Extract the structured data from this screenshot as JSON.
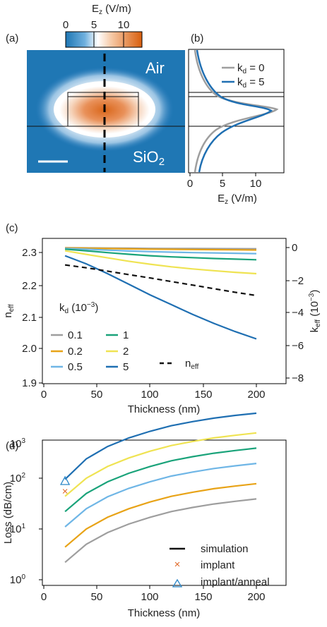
{
  "colors": {
    "field_low": "#1f77b4",
    "field_mid": "#ffffff",
    "field_high": "#d95f0e",
    "kd_0p1": "#9e9e9e",
    "kd_0p2": "#e8a317",
    "kd_0p5": "#6fb6e6",
    "kd_1": "#1aa37a",
    "kd_2": "#efe352",
    "kd_5": "#1f6fb2",
    "neff_line": "#111111",
    "implant_marker": "#e06a2a",
    "anneal_marker": "#2a86c8"
  },
  "panel_a": {
    "label": "(a)",
    "colorbar_title": "E",
    "colorbar_sub": "z",
    "colorbar_unit": " (V/m)",
    "colorbar_ticks": [
      "0",
      "5",
      "10"
    ],
    "air_label": "Air",
    "substrate_label": "SiO",
    "substrate_sub": "2"
  },
  "panel_b": {
    "label": "(b)",
    "xlabel_main": "E",
    "xlabel_sub": "z",
    "xlabel_unit": " (V/m)",
    "xticks": [
      "0",
      "5",
      "10"
    ],
    "legend": [
      {
        "k": "k",
        "sub": "d",
        "val": " = 0"
      },
      {
        "k": "k",
        "sub": "d",
        "val": " = 5"
      }
    ]
  },
  "panel_c": {
    "label": "(c)",
    "xlabel": "Thickness (nm)",
    "ylabel_left_main": "n",
    "ylabel_left_sub": "eff",
    "ylabel_right_main": "k",
    "ylabel_right_sub": "eff",
    "ylabel_right_unit": " (10",
    "ylabel_right_exp": "−3",
    "ylabel_right_close": ")",
    "legend_title_main": "k",
    "legend_title_sub": "d",
    "legend_title_unit": " (10",
    "legend_title_exp": "−3",
    "legend_title_close": ")",
    "legend_items": [
      "0.1",
      "1",
      "0.2",
      "2",
      "0.5",
      "5"
    ],
    "neff_legend_main": "n",
    "neff_legend_sub": "eff",
    "yticks_left": [
      "1.9",
      "2.0",
      "2.1",
      "2.2",
      "2.3"
    ],
    "yticks_right": [
      "0",
      "−2",
      "−4",
      "−6",
      "−8"
    ],
    "xticks": [
      "0",
      "50",
      "100",
      "150",
      "200"
    ]
  },
  "panel_d": {
    "label": "(d)",
    "xlabel": "Thickness (nm)",
    "ylabel": "Loss (dB/cm)",
    "xticks": [
      "0",
      "50",
      "100",
      "150",
      "200"
    ],
    "yticks": [
      {
        "base": "10",
        "exp": "0"
      },
      {
        "base": "10",
        "exp": "1"
      },
      {
        "base": "10",
        "exp": "2"
      },
      {
        "base": "10",
        "exp": "3"
      }
    ],
    "legend": [
      "simulation",
      "implant",
      "implant/anneal"
    ]
  },
  "chart_data": [
    {
      "type": "heatmap",
      "panel": "a",
      "title": "E_z (V/m)",
      "colorbar_range": [
        0,
        12
      ],
      "labels": [
        "Air",
        "SiO2"
      ]
    },
    {
      "type": "line",
      "panel": "b",
      "xlabel": "E_z (V/m)",
      "xlim": [
        0,
        14
      ],
      "series": [
        {
          "name": "k_d = 0",
          "peak_value": 12.6
        },
        {
          "name": "k_d = 5",
          "peak_value": 12.1
        }
      ]
    },
    {
      "type": "line",
      "panel": "c",
      "xlabel": "Thickness (nm)",
      "ylabel": "n_eff",
      "ylabel_right": "k_eff (10^-3)",
      "xlim": [
        0,
        210
      ],
      "ylim": [
        1.9,
        2.38
      ],
      "ylim_right": [
        -8.2,
        0.4
      ],
      "x": [
        20,
        40,
        60,
        80,
        100,
        120,
        140,
        160,
        180,
        200
      ],
      "neff": {
        "name": "n_eff",
        "values": [
          2.262,
          2.253,
          2.243,
          2.232,
          2.222,
          2.211,
          2.2,
          2.189,
          2.178,
          2.168
        ]
      },
      "series": [
        {
          "name": "0.1",
          "values": [
            -0.01,
            -0.02,
            -0.03,
            -0.04,
            -0.05,
            -0.055,
            -0.06,
            -0.065,
            -0.07,
            -0.075
          ]
        },
        {
          "name": "0.2",
          "values": [
            -0.02,
            -0.04,
            -0.06,
            -0.08,
            -0.1,
            -0.11,
            -0.12,
            -0.13,
            -0.14,
            -0.15
          ]
        },
        {
          "name": "0.5",
          "values": [
            -0.05,
            -0.1,
            -0.16,
            -0.21,
            -0.25,
            -0.28,
            -0.31,
            -0.33,
            -0.35,
            -0.37
          ]
        },
        {
          "name": "1",
          "values": [
            -0.1,
            -0.2,
            -0.31,
            -0.41,
            -0.5,
            -0.57,
            -0.62,
            -0.67,
            -0.71,
            -0.75
          ]
        },
        {
          "name": "2",
          "values": [
            -0.2,
            -0.42,
            -0.63,
            -0.84,
            -1.02,
            -1.18,
            -1.31,
            -1.42,
            -1.52,
            -1.6
          ]
        },
        {
          "name": "5",
          "values": [
            -0.5,
            -1.0,
            -1.6,
            -2.25,
            -2.9,
            -3.5,
            -4.1,
            -4.65,
            -5.15,
            -5.6
          ]
        }
      ]
    },
    {
      "type": "line",
      "panel": "d",
      "xlabel": "Thickness (nm)",
      "ylabel": "Loss (dB/cm)",
      "yscale": "log",
      "xlim": [
        0,
        210
      ],
      "ylim": [
        1,
        2000
      ],
      "x": [
        20,
        40,
        60,
        80,
        100,
        120,
        140,
        160,
        180,
        200
      ],
      "series": [
        {
          "name": "0.1",
          "values": [
            2.2,
            5,
            8.5,
            12.5,
            17,
            22,
            26.5,
            31,
            35,
            39
          ]
        },
        {
          "name": "0.2",
          "values": [
            4.4,
            10,
            17,
            25,
            34,
            44,
            53,
            62,
            70,
            78
          ]
        },
        {
          "name": "0.5",
          "values": [
            11,
            25,
            43,
            63,
            85,
            110,
            132,
            155,
            175,
            195
          ]
        },
        {
          "name": "1",
          "values": [
            22,
            50,
            85,
            125,
            170,
            220,
            265,
            310,
            350,
            390
          ]
        },
        {
          "name": "2",
          "values": [
            44,
            100,
            170,
            250,
            340,
            440,
            530,
            620,
            700,
            780
          ]
        },
        {
          "name": "5",
          "values": [
            95,
            240,
            420,
            620,
            840,
            1080,
            1300,
            1520,
            1720,
            1900
          ]
        }
      ],
      "markers": [
        {
          "name": "implant",
          "x": 20,
          "y": 55
        },
        {
          "name": "implant/anneal",
          "x": 20,
          "y": 88
        }
      ]
    }
  ]
}
